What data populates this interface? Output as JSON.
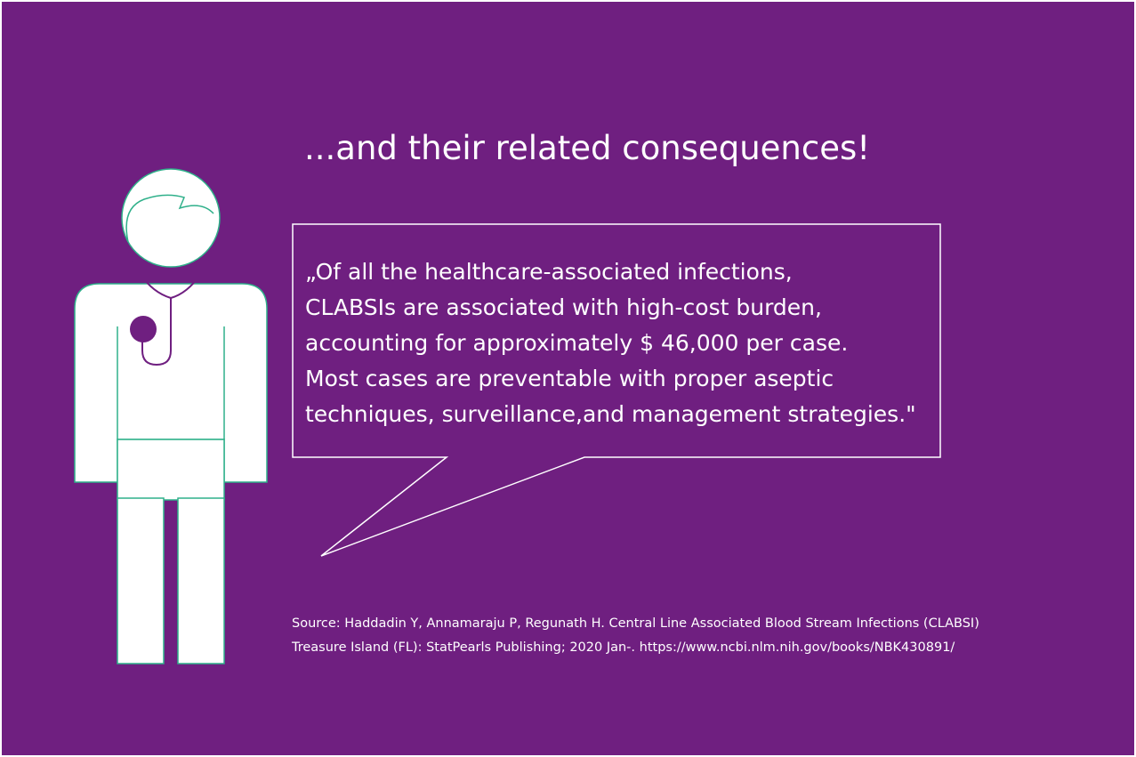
{
  "theme": {
    "background": "#6f1f80",
    "figure_fill": "#ffffff",
    "figure_outline": "#2fb08a",
    "stethoscope": "#6f1f80",
    "text": "#ffffff"
  },
  "headline": "...and their related consequences!",
  "quote": {
    "lines": [
      "„Of all the healthcare-associated infections,",
      "CLABSIs are associated with high-cost burden,",
      "accounting for approximately $ 46,000 per case.",
      "Most cases are preventable with proper aseptic",
      "techniques, surveillance,and management strategies.\""
    ]
  },
  "source": {
    "lines": [
      "Source: Haddadin Y, Annamaraju P, Regunath H. Central Line Associated Blood Stream Infections (CLABSI)",
      "Treasure Island (FL): StatPearls Publishing; 2020 Jan-. https://www.ncbi.nlm.nih.gov/books/NBK430891/"
    ]
  },
  "icons": {
    "figure": "healthcare-worker-icon",
    "stethoscope": "stethoscope-icon",
    "bubble": "speech-bubble-icon"
  }
}
